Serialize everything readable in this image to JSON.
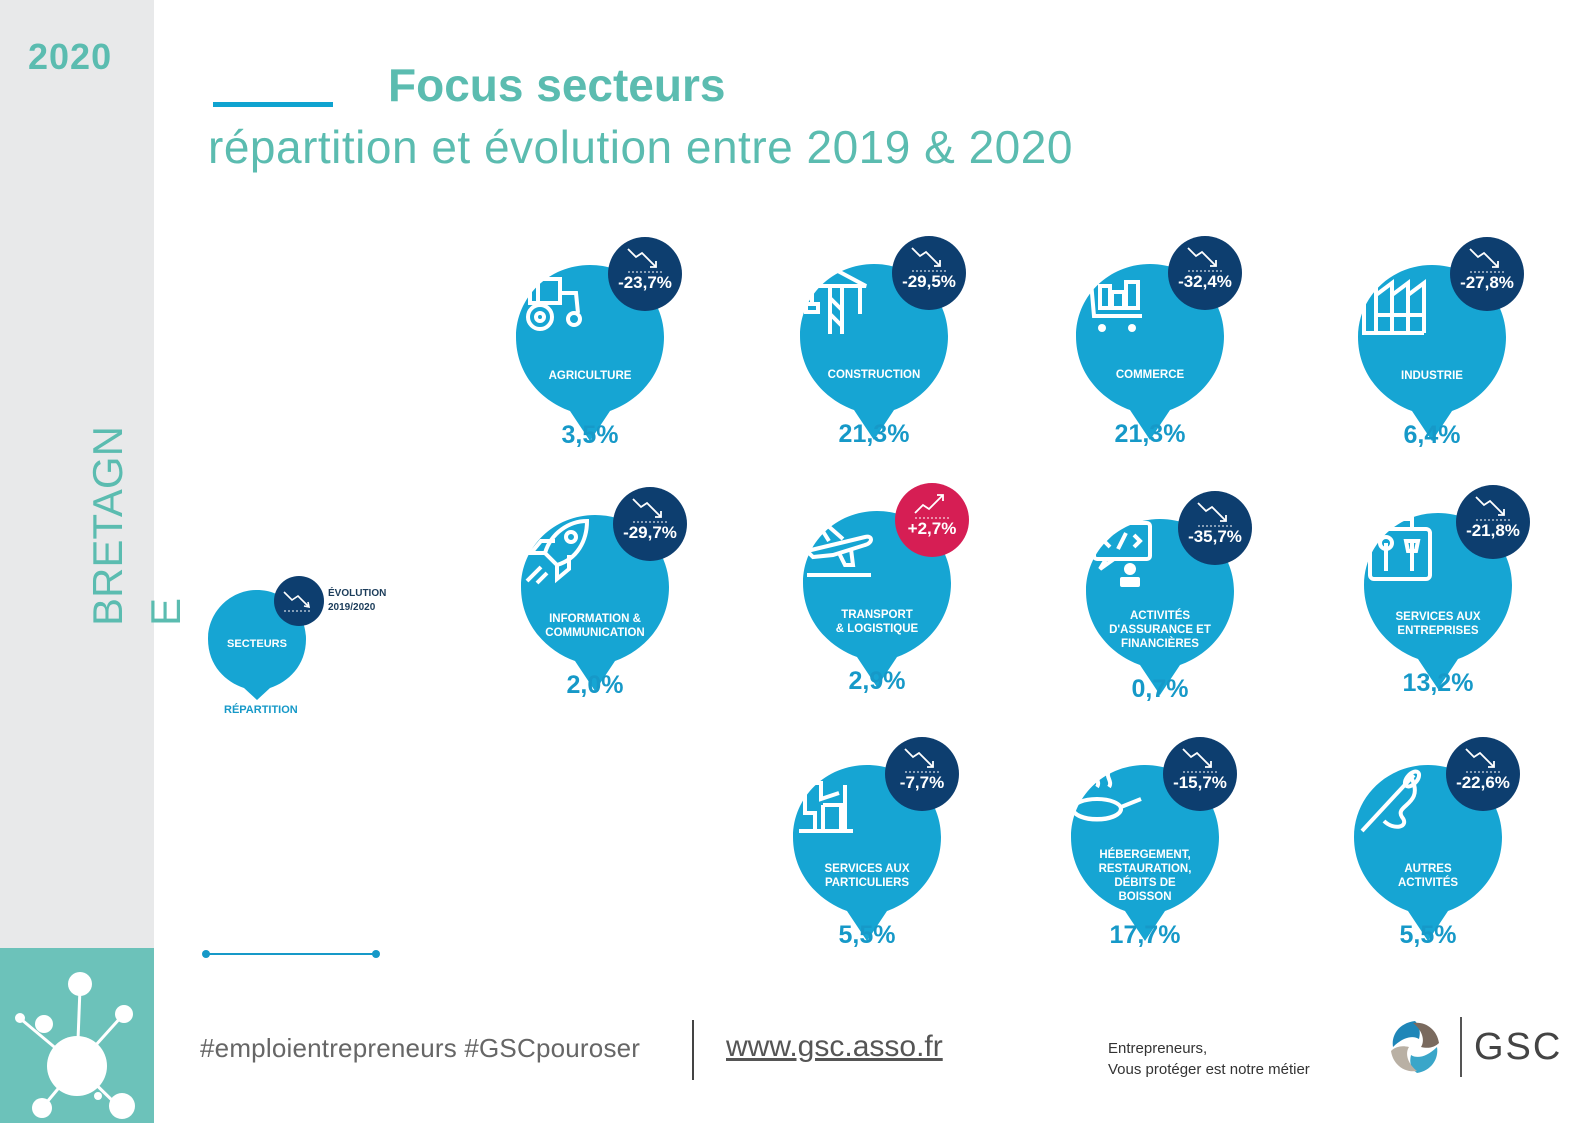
{
  "sidebar": {
    "year": "2020",
    "region": "BRETAGNE"
  },
  "header": {
    "title": "Focus secteurs",
    "subtitle": "répartition et évolution entre 2019 & 2020"
  },
  "colors": {
    "teal": "#5bbcb0",
    "bubble": "#16a5d3",
    "badge_down": "#0d3e6f",
    "badge_up": "#d61e54",
    "share_text": "#1699c8"
  },
  "legend": {
    "evolution_label_1": "ÉVOLUTION",
    "evolution_label_2": "2019/2020",
    "sectors_label": "SECTEURS",
    "repartition_label": "RÉPARTITION"
  },
  "sectors": [
    {
      "id": "agriculture",
      "label": [
        "AGRICULTURE"
      ],
      "icon": "tractor-icon",
      "evolution": "-23,7%",
      "trend": "down",
      "share": "3,5%"
    },
    {
      "id": "construction",
      "label": [
        "CONSTRUCTION"
      ],
      "icon": "crane-icon",
      "evolution": "-29,5%",
      "trend": "down",
      "share": "21,3%"
    },
    {
      "id": "commerce",
      "label": [
        "COMMERCE"
      ],
      "icon": "cart-icon",
      "evolution": "-32,4%",
      "trend": "down",
      "share": "21,3%"
    },
    {
      "id": "industrie",
      "label": [
        "INDUSTRIE"
      ],
      "icon": "factory-icon",
      "evolution": "-27,8%",
      "trend": "down",
      "share": "6,4%"
    },
    {
      "id": "information",
      "label": [
        "INFORMATION &",
        "COMMUNICATION"
      ],
      "icon": "rocket-icon",
      "evolution": "-29,7%",
      "trend": "down",
      "share": "2,0%"
    },
    {
      "id": "transport",
      "label": [
        "TRANSPORT",
        "& LOGISTIQUE"
      ],
      "icon": "plane-icon",
      "evolution": "+2,7%",
      "trend": "up",
      "share": "2,9%"
    },
    {
      "id": "assurance",
      "label": [
        "ACTIVITÉS",
        "D'ASSURANCE ET",
        "FINANCIÈRES"
      ],
      "icon": "code-screen-icon",
      "evolution": "-35,7%",
      "trend": "down",
      "share": "0,7%"
    },
    {
      "id": "services-entreprises",
      "label": [
        "SERVICES AUX",
        "ENTREPRISES"
      ],
      "icon": "toolbox-icon",
      "evolution": "-21,8%",
      "trend": "down",
      "share": "13,2%"
    },
    {
      "id": "services-particuliers",
      "label": [
        "SERVICES AUX",
        "PARTICULIERS"
      ],
      "icon": "caregiver-icon",
      "evolution": "-7,7%",
      "trend": "down",
      "share": "5,5%"
    },
    {
      "id": "hebergement",
      "label": [
        "HÉBERGEMENT,",
        "RESTAURATION,",
        "DÉBITS DE",
        "BOISSON"
      ],
      "icon": "pan-icon",
      "evolution": "-15,7%",
      "trend": "down",
      "share": "17,7%"
    },
    {
      "id": "autres",
      "label": [
        "AUTRES",
        "ACTIVITÉS"
      ],
      "icon": "needle-icon",
      "evolution": "-22,6%",
      "trend": "down",
      "share": "5,5%"
    }
  ],
  "footer": {
    "hashtags": "#emploientrepreneurs #GSCpouroser",
    "url": "www.gsc.asso.fr",
    "motto_1": "Entrepreneurs,",
    "motto_2": "Vous protéger est notre métier",
    "brand": "GSC"
  }
}
